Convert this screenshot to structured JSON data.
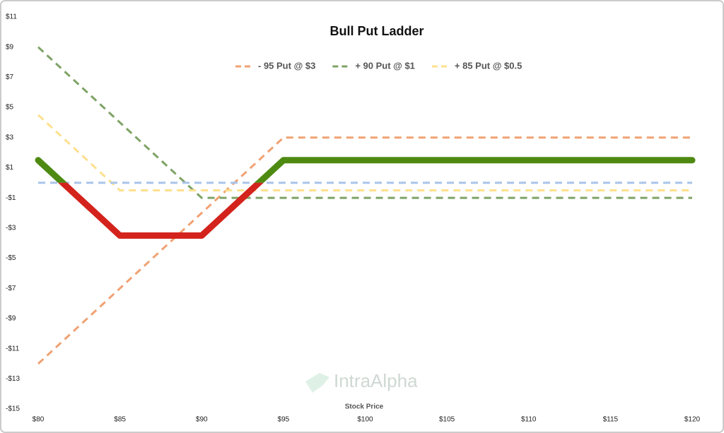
{
  "chart_data": {
    "type": "line",
    "title": "Bull Put Ladder",
    "x_label": "Stock Price",
    "watermark": "IntraAlpha",
    "x": [
      80,
      85,
      90,
      95,
      120
    ],
    "xlim": [
      80,
      120
    ],
    "xticks": [
      {
        "value": 80,
        "label": "$80"
      },
      {
        "value": 85,
        "label": "$85"
      },
      {
        "value": 90,
        "label": "$90"
      },
      {
        "value": 95,
        "label": "$95"
      },
      {
        "value": 100,
        "label": "$100"
      },
      {
        "value": 105,
        "label": "$105"
      },
      {
        "value": 110,
        "label": "$110"
      },
      {
        "value": 115,
        "label": "$115"
      },
      {
        "value": 120,
        "label": "$120"
      }
    ],
    "ylim": [
      -15,
      11
    ],
    "yticks": [
      {
        "value": -15,
        "label": "-$15"
      },
      {
        "value": -13,
        "label": "-$13"
      },
      {
        "value": -11,
        "label": "-$11"
      },
      {
        "value": -9,
        "label": "-$9"
      },
      {
        "value": -7,
        "label": "-$7"
      },
      {
        "value": -5,
        "label": "-$5"
      },
      {
        "value": -3,
        "label": "-$3"
      },
      {
        "value": -1,
        "label": "-$1"
      },
      {
        "value": 1,
        "label": "$1"
      },
      {
        "value": 3,
        "label": "$3"
      },
      {
        "value": 5,
        "label": "$5"
      },
      {
        "value": 7,
        "label": "$7"
      },
      {
        "value": 9,
        "label": "$9"
      },
      {
        "value": 11,
        "label": "$11"
      }
    ],
    "series": [
      {
        "name": "- 95 Put @ $3",
        "color": "#f0a274",
        "dashed": true,
        "values": [
          -12,
          -7,
          -2,
          3,
          3
        ]
      },
      {
        "name": "+ 90 Put @ $1",
        "color": "#7fa366",
        "dashed": true,
        "values": [
          9,
          4,
          -1,
          -1,
          -1
        ]
      },
      {
        "name": "+ 85 Put @ $0.5",
        "color": "#fde08e",
        "dashed": true,
        "values": [
          4.5,
          -0.5,
          -0.5,
          -0.5,
          -0.5
        ]
      },
      {
        "color": "#a9c5ea",
        "dashed": true,
        "values": [
          0,
          0,
          0,
          0,
          0
        ]
      },
      {
        "color": "#4e8a12",
        "negative_color": "#d3231c",
        "dashed": false,
        "values": [
          1.5,
          -3.5,
          -3.5,
          1.5,
          1.5
        ]
      }
    ]
  }
}
